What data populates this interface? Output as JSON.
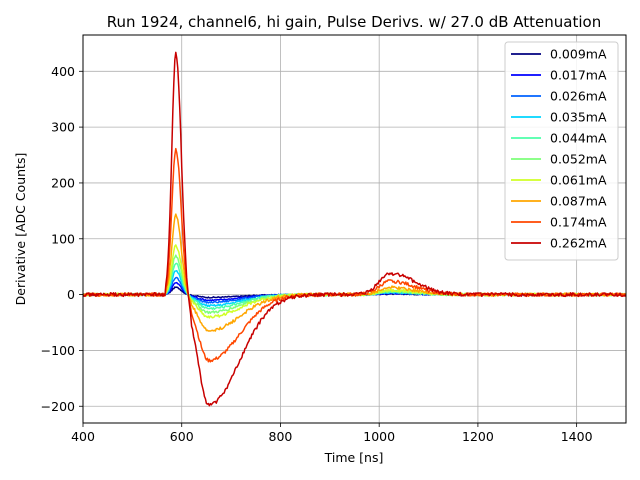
{
  "chart_data": {
    "type": "line",
    "title": "Run 1924, channel6, hi gain, Pulse Derivs. w/ 27.0 dB Attenuation",
    "xlabel": "Time [ns]",
    "ylabel": "Derivative [ADC Counts]",
    "xlim": [
      400,
      1500
    ],
    "ylim": [
      -230,
      465
    ],
    "xticks": [
      400,
      600,
      800,
      1000,
      1200,
      1400
    ],
    "yticks": [
      -200,
      -100,
      0,
      100,
      200,
      300,
      400
    ],
    "ytick_labels": [
      "−200",
      "−100",
      "0",
      "100",
      "200",
      "300",
      "400"
    ],
    "grid": true,
    "legend_position": "top-right",
    "series": [
      {
        "name": "0.009mA",
        "color": "#00007f",
        "peak": 13,
        "trough": -5,
        "bump": 1
      },
      {
        "name": "0.017mA",
        "color": "#0000ff",
        "peak": 21,
        "trough": -10,
        "bump": 2
      },
      {
        "name": "0.026mA",
        "color": "#0063ff",
        "peak": 30,
        "trough": -14,
        "bump": 3
      },
      {
        "name": "0.035mA",
        "color": "#00d4ff",
        "peak": 42,
        "trough": -20,
        "bump": 4
      },
      {
        "name": "0.044mA",
        "color": "#4dffaa",
        "peak": 55,
        "trough": -25,
        "bump": 5
      },
      {
        "name": "0.052mA",
        "color": "#7dff7a",
        "peak": 70,
        "trough": -32,
        "bump": 6
      },
      {
        "name": "0.061mA",
        "color": "#d1ff26",
        "peak": 88,
        "trough": -40,
        "bump": 8
      },
      {
        "name": "0.087mA",
        "color": "#ffa600",
        "peak": 143,
        "trough": -65,
        "bump": 13
      },
      {
        "name": "0.174mA",
        "color": "#ff4700",
        "peak": 260,
        "trough": -118,
        "bump": 24
      },
      {
        "name": "0.262mA",
        "color": "#c80000",
        "peak": 432,
        "trough": -197,
        "bump": 38
      }
    ]
  }
}
